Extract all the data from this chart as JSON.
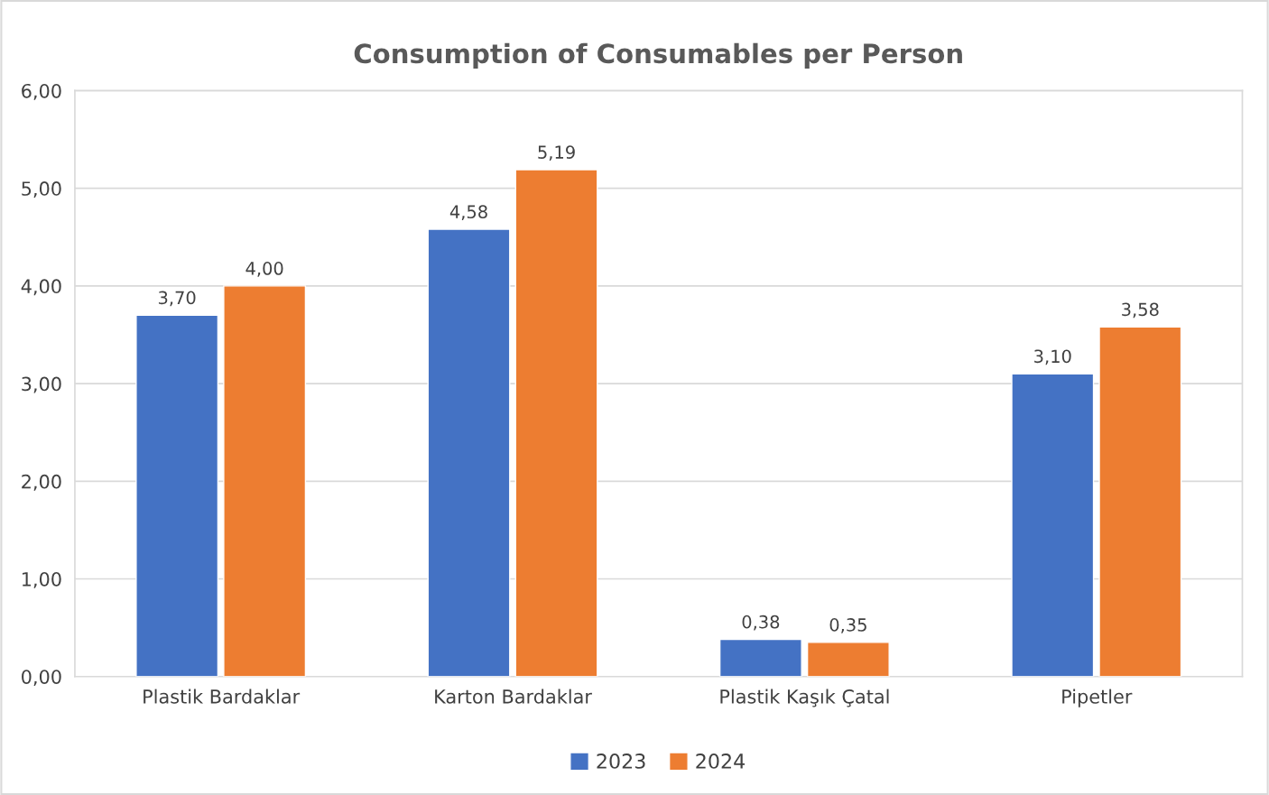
{
  "chart_data": {
    "type": "bar",
    "title": "Consumption of Consumables per Person",
    "categories": [
      "Plastik Bardaklar",
      "Karton Bardaklar",
      "Plastik Kaşık Çatal",
      "Pipetler"
    ],
    "series": [
      {
        "name": "2023",
        "color": "#4472c4",
        "values": [
          3.7,
          4.58,
          0.38,
          3.1
        ],
        "value_labels": [
          "3,70",
          "4,58",
          "0,38",
          "3,10"
        ]
      },
      {
        "name": "2024",
        "color": "#ed7d31",
        "values": [
          4.0,
          5.19,
          0.35,
          3.58
        ],
        "value_labels": [
          "4,00",
          "5,19",
          "0,35",
          "3,58"
        ]
      }
    ],
    "ylim": [
      0,
      6
    ],
    "yticks": [
      {
        "value": 0,
        "label": "0,00"
      },
      {
        "value": 1,
        "label": "1,00"
      },
      {
        "value": 2,
        "label": "2,00"
      },
      {
        "value": 3,
        "label": "3,00"
      },
      {
        "value": 4,
        "label": "4,00"
      },
      {
        "value": 5,
        "label": "5,00"
      },
      {
        "value": 6,
        "label": "6,00"
      }
    ],
    "grid": "y",
    "legend": "bottom"
  }
}
